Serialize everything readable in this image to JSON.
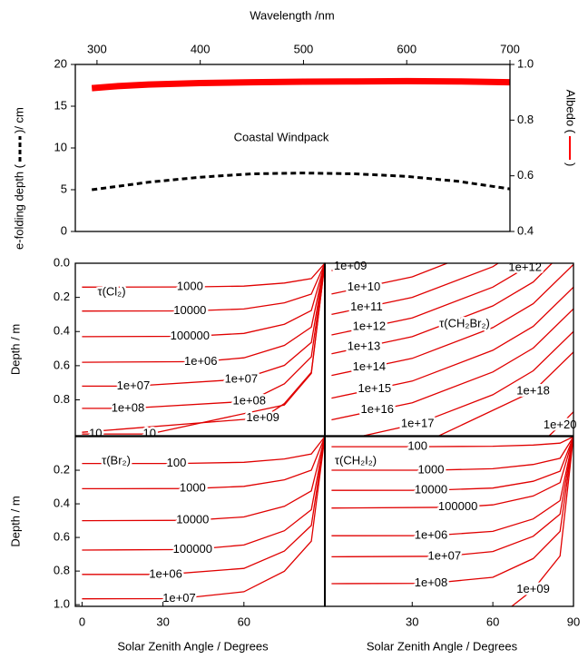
{
  "chart_data": [
    {
      "type": "line",
      "title": "Wavelength /nm",
      "annotation": "Coastal Windpack",
      "y_label": "e-folding depth (",
      "y_label_end": ")/ cm",
      "y2_label": "Albedo (",
      "y2_label_end": ")",
      "x_axis_position": "top",
      "x": [
        295,
        320,
        350,
        400,
        450,
        500,
        550,
        600,
        650,
        700
      ],
      "xlim": [
        279,
        700
      ],
      "xticks": [
        300,
        400,
        500,
        600,
        700
      ],
      "ylim": [
        0,
        20
      ],
      "yticks": [
        0,
        5,
        10,
        15,
        20
      ],
      "y2lim": [
        0.4,
        1.0
      ],
      "y2ticks": [
        0.4,
        0.6,
        0.8,
        {
          "value": 1.0,
          "label": "1.0"
        }
      ],
      "series": [
        {
          "name": "e-folding depth",
          "color": "#000000",
          "dashed": true,
          "values": [
            5.0,
            5.4,
            5.9,
            6.5,
            6.9,
            7.0,
            6.9,
            6.6,
            6.0,
            5.1
          ]
        },
        {
          "name": "Albedo",
          "color": "#ff0000",
          "axis": "y2",
          "values": [
            0.915,
            0.922,
            0.928,
            0.933,
            0.936,
            0.938,
            0.939,
            0.94,
            0.939,
            0.936
          ]
        }
      ]
    },
    {
      "type": "contour",
      "title": "τ(Cl₂)",
      "ylabel": "Depth / m",
      "color": "#e00000",
      "y_inverted": true,
      "xlim": [
        -2.5,
        90
      ],
      "ylim": [
        0,
        1.01
      ],
      "yticks": [
        {
          "value": 0,
          "label": "0.0"
        },
        0.2,
        0.4,
        0.6,
        0.8
      ],
      "contours": [
        {
          "name": "1000",
          "x": [
            0,
            40,
            60,
            75,
            85,
            90
          ],
          "y": [
            0.14,
            0.139,
            0.134,
            0.116,
            0.09,
            0
          ]
        },
        {
          "name": "10000",
          "x": [
            0,
            40,
            60,
            75,
            85,
            90
          ],
          "y": [
            0.28,
            0.279,
            0.268,
            0.232,
            0.181,
            0
          ]
        },
        {
          "name": "100000",
          "x": [
            0,
            40,
            60,
            75,
            85,
            90
          ],
          "y": [
            0.43,
            0.428,
            0.411,
            0.357,
            0.277,
            0
          ]
        },
        {
          "name": "1e+06",
          "x": [
            0,
            44,
            60,
            75,
            85,
            90
          ],
          "y": [
            0.58,
            0.576,
            0.554,
            0.481,
            0.374,
            0
          ]
        },
        {
          "name": "1e+07",
          "x": [
            0,
            19,
            59,
            75,
            85,
            90
          ],
          "y": [
            0.72,
            0.72,
            0.68,
            0.598,
            0.464,
            0
          ]
        },
        {
          "name": "1e+08",
          "x": [
            0,
            17,
            62,
            75,
            85,
            90
          ],
          "y": [
            0.85,
            0.85,
            0.808,
            0.706,
            0.548,
            0
          ]
        },
        {
          "name": "1e+09",
          "x": [
            0,
            67,
            75,
            85,
            90
          ],
          "y": [
            0.99,
            0.906,
            0.822,
            0.639,
            0
          ]
        },
        {
          "name": "10",
          "x": [
            0,
            5,
            25,
            75,
            85,
            90
          ],
          "y": [
            1.0,
            1.0,
            1.0,
            0.83,
            0.645,
            0
          ]
        }
      ]
    },
    {
      "type": "contour",
      "title": "τ(CH₂Br₂)",
      "color": "#e00000",
      "y_inverted": true,
      "xlim": [
        -2.5,
        90
      ],
      "ylim": [
        0,
        1.01
      ],
      "contours": [
        {
          "name": "1e+09",
          "x": [
            0,
            7,
            13
          ],
          "y": [
            0.043,
            0.02,
            0
          ]
        },
        {
          "name": "1e+10",
          "x": [
            0,
            12,
            30,
            43
          ],
          "y": [
            0.18,
            0.14,
            0.08,
            0
          ]
        },
        {
          "name": "1e+11",
          "x": [
            0,
            13,
            30,
            60,
            62
          ],
          "y": [
            0.3,
            0.257,
            0.2,
            0.02,
            0
          ]
        },
        {
          "name": "1e+12",
          "x": [
            0,
            14,
            30,
            60,
            72,
            75
          ],
          "y": [
            0.42,
            0.373,
            0.32,
            0.14,
            0.028,
            0
          ]
        },
        {
          "name": "1e+13",
          "x": [
            0,
            12,
            30,
            60,
            75,
            82
          ],
          "y": [
            0.53,
            0.49,
            0.43,
            0.25,
            0.11,
            0
          ]
        },
        {
          "name": "1e+14",
          "x": [
            0,
            14,
            30,
            60,
            75,
            90
          ],
          "y": [
            0.657,
            0.61,
            0.557,
            0.377,
            0.237,
            0.007
          ]
        },
        {
          "name": "1e+15",
          "x": [
            0,
            16,
            30,
            60,
            75,
            90
          ],
          "y": [
            0.79,
            0.737,
            0.69,
            0.51,
            0.37,
            0.14
          ]
        },
        {
          "name": "1e+16",
          "x": [
            0,
            17,
            30,
            60,
            75,
            90
          ],
          "y": [
            0.917,
            0.86,
            0.817,
            0.637,
            0.497,
            0.267
          ]
        },
        {
          "name": "1e+17",
          "x": [
            12,
            32,
            60,
            75,
            90
          ],
          "y": [
            1.01,
            0.94,
            0.77,
            0.63,
            0.4
          ]
        },
        {
          "name": "1e+18",
          "x": [
            40,
            75,
            90
          ],
          "y": [
            1.01,
            0.75,
            0.52
          ]
        },
        {
          "name": "1e+20",
          "x": [
            81,
            85,
            90
          ],
          "y": [
            1.01,
            0.95,
            0.87
          ]
        }
      ]
    },
    {
      "type": "contour",
      "title": "τ(Br₂)",
      "ylabel": "Depth / m",
      "xlabel": "Solar Zenith Angle / Degrees",
      "color": "#e00000",
      "y_inverted": true,
      "xlim": [
        -2.5,
        90
      ],
      "ylim": [
        0,
        1.01
      ],
      "xticks": [
        0,
        30,
        60
      ],
      "yticks": [
        0.2,
        0.4,
        0.6,
        0.8,
        {
          "value": 1.0,
          "label": "1.0"
        }
      ],
      "contours": [
        {
          "name": "100",
          "x": [
            0,
            35,
            60,
            75,
            85,
            90
          ],
          "y": [
            0.16,
            0.16,
            0.153,
            0.133,
            0.103,
            0
          ]
        },
        {
          "name": "1000",
          "x": [
            0,
            41,
            60,
            75,
            85,
            90
          ],
          "y": [
            0.31,
            0.309,
            0.296,
            0.257,
            0.2,
            0
          ]
        },
        {
          "name": "10000",
          "x": [
            0,
            41,
            60,
            75,
            85,
            90
          ],
          "y": [
            0.5,
            0.498,
            0.478,
            0.415,
            0.323,
            0
          ]
        },
        {
          "name": "100000",
          "x": [
            0,
            41,
            60,
            75,
            85,
            90
          ],
          "y": [
            0.675,
            0.672,
            0.645,
            0.56,
            0.435,
            0
          ]
        },
        {
          "name": "1e+06",
          "x": [
            0,
            31,
            60,
            75,
            85,
            90
          ],
          "y": [
            0.82,
            0.82,
            0.784,
            0.681,
            0.529,
            0
          ]
        },
        {
          "name": "1e+07",
          "x": [
            0,
            36,
            60,
            75,
            85,
            90
          ],
          "y": [
            0.965,
            0.964,
            0.923,
            0.801,
            0.622,
            0
          ]
        }
      ]
    },
    {
      "type": "contour",
      "title": "τ(CH₂I₂)",
      "xlabel": "Solar Zenith Angle / Degrees",
      "color": "#e00000",
      "y_inverted": true,
      "xlim": [
        -2.5,
        90
      ],
      "ylim": [
        0,
        1.01
      ],
      "xticks": [
        30,
        60,
        90
      ],
      "contours": [
        {
          "name": "100",
          "x": [
            0,
            32,
            60,
            75,
            85,
            90
          ],
          "y": [
            0.06,
            0.06,
            0.057,
            0.05,
            0.039,
            0
          ]
        },
        {
          "name": "1000",
          "x": [
            0,
            37,
            60,
            75,
            85,
            90
          ],
          "y": [
            0.2,
            0.2,
            0.191,
            0.166,
            0.129,
            0
          ]
        },
        {
          "name": "10000",
          "x": [
            0,
            37,
            60,
            75,
            85,
            90
          ],
          "y": [
            0.32,
            0.319,
            0.306,
            0.266,
            0.206,
            0
          ]
        },
        {
          "name": "100000",
          "x": [
            0,
            47,
            60,
            75,
            85,
            90
          ],
          "y": [
            0.425,
            0.42,
            0.406,
            0.353,
            0.274,
            0
          ]
        },
        {
          "name": "1e+06",
          "x": [
            0,
            37,
            60,
            75,
            85,
            90
          ],
          "y": [
            0.59,
            0.589,
            0.564,
            0.49,
            0.381,
            0
          ]
        },
        {
          "name": "1e+07",
          "x": [
            0,
            42,
            60,
            75,
            85,
            90
          ],
          "y": [
            0.715,
            0.712,
            0.684,
            0.593,
            0.461,
            0
          ]
        },
        {
          "name": "1e+08",
          "x": [
            0,
            37,
            60,
            75,
            85,
            90
          ],
          "y": [
            0.875,
            0.873,
            0.837,
            0.726,
            0.564,
            0
          ]
        },
        {
          "name": "1e+09",
          "x": [
            67,
            75,
            85,
            90
          ],
          "y": [
            1.01,
            0.91,
            0.71,
            0
          ]
        }
      ]
    }
  ]
}
